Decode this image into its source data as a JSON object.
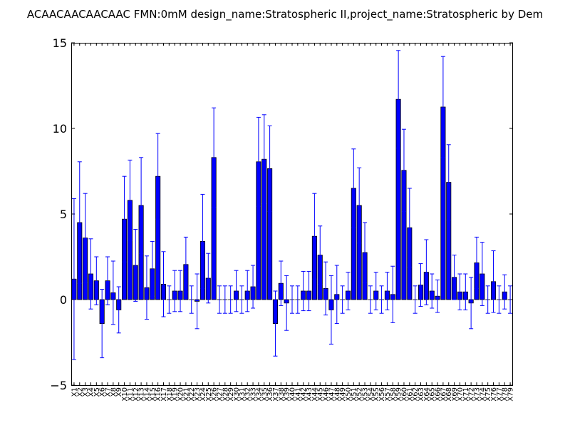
{
  "chart_data": {
    "type": "bar",
    "title": "ACAACAACAACAAC  FMN:0mM  design_name:Stratospheric II,project_name:Stratospheric by Dem",
    "xlabel": "",
    "ylabel": "",
    "ylim": [
      -5,
      15
    ],
    "yticks": [
      -5,
      0,
      5,
      10,
      15
    ],
    "grid": false,
    "legend": "none",
    "bar_color": "#0000ff",
    "error_color": "#0000ff",
    "categories": [
      "X1",
      "X2",
      "X3",
      "X4",
      "X5",
      "X6",
      "X7",
      "X8",
      "X9",
      "X10",
      "X11",
      "X12",
      "X13",
      "X14",
      "X15",
      "X16",
      "X17",
      "X18",
      "X19",
      "X20",
      "X21",
      "X22",
      "X23",
      "X24",
      "X25",
      "X26",
      "X27",
      "X28",
      "X29",
      "X30",
      "X31",
      "X32",
      "X33",
      "X34",
      "X35",
      "X36",
      "X37",
      "X38",
      "X39",
      "X40",
      "X41",
      "X42",
      "X43",
      "X44",
      "X45",
      "X46",
      "X47",
      "X48",
      "X49",
      "X50",
      "X51",
      "X52",
      "X53",
      "X54",
      "X55",
      "X56",
      "X57",
      "X58",
      "X59",
      "X60",
      "X61",
      "X62",
      "X63",
      "X64",
      "X65",
      "X66",
      "X67",
      "X68",
      "X69",
      "X70",
      "X71",
      "X72",
      "X73",
      "X74",
      "X75",
      "X76",
      "X77",
      "X78",
      "X79"
    ],
    "values": [
      1.2,
      4.5,
      3.6,
      1.5,
      1.1,
      -1.4,
      1.1,
      0.4,
      -0.6,
      4.7,
      5.8,
      2.0,
      5.5,
      0.7,
      1.8,
      7.2,
      0.9,
      0.0,
      0.5,
      0.5,
      2.05,
      0.0,
      -0.1,
      3.4,
      1.25,
      8.3,
      0.0,
      0.0,
      0.0,
      0.5,
      0.0,
      0.5,
      0.75,
      8.05,
      8.2,
      7.65,
      -1.4,
      0.95,
      -0.2,
      0.0,
      0.0,
      0.5,
      0.5,
      3.7,
      2.6,
      0.65,
      -0.6,
      0.3,
      0.0,
      0.5,
      6.5,
      5.5,
      2.75,
      0.0,
      0.5,
      0.0,
      0.5,
      0.3,
      11.7,
      7.55,
      4.2,
      0.0,
      0.85,
      1.6,
      0.5,
      0.2,
      11.25,
      6.85,
      1.3,
      0.45,
      0.45,
      -0.2,
      2.15,
      1.5,
      0.0,
      1.05,
      0.0,
      0.45,
      0.0
    ],
    "errors": [
      4.7,
      3.55,
      2.6,
      2.05,
      1.4,
      2.0,
      1.4,
      1.85,
      1.35,
      2.5,
      2.35,
      2.1,
      2.8,
      1.85,
      1.6,
      2.5,
      1.9,
      0.8,
      1.2,
      1.2,
      1.6,
      0.8,
      1.6,
      2.75,
      1.45,
      2.9,
      0.8,
      0.8,
      0.8,
      1.2,
      0.8,
      1.2,
      1.25,
      2.6,
      2.6,
      2.5,
      1.9,
      1.3,
      1.6,
      0.8,
      0.8,
      1.15,
      1.15,
      2.5,
      1.7,
      1.55,
      2.0,
      1.7,
      0.8,
      1.1,
      2.3,
      2.2,
      1.75,
      0.8,
      1.1,
      0.8,
      1.1,
      1.65,
      2.85,
      2.4,
      2.3,
      0.8,
      1.25,
      1.9,
      1.0,
      0.95,
      2.95,
      2.2,
      1.3,
      1.05,
      1.05,
      1.5,
      1.5,
      1.85,
      0.8,
      1.8,
      0.8,
      1.0,
      0.8
    ]
  }
}
